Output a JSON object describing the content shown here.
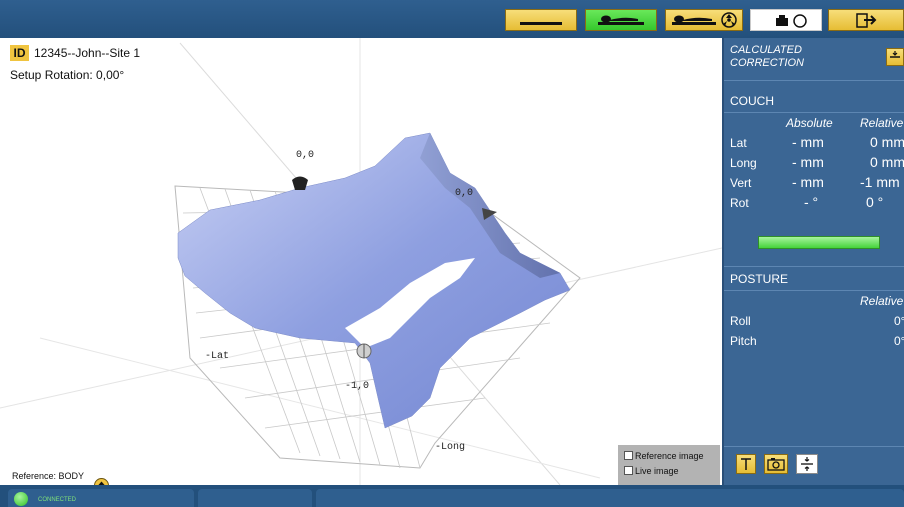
{
  "header": {
    "patient_id_badge": "ID",
    "patient_id": "12345--John--Site 1",
    "setup_rotation": "Setup Rotation: 0,00°"
  },
  "toolbar": {
    "buttons": [
      "couch-flat",
      "patient-setup",
      "patient-radiation",
      "printer-record",
      "exit"
    ],
    "active": "patient-setup"
  },
  "view3d": {
    "labels": {
      "origin_top": "0,0",
      "origin_right": "0,0",
      "neg_lat": "-Lat",
      "neg_one": "-1,0",
      "neg_long": "-Long"
    },
    "overlay": {
      "reference_image": "Reference image",
      "live_image": "Live image"
    }
  },
  "reference": "Reference: BODY",
  "status": {
    "connected": "CONNECTED"
  },
  "panel": {
    "title": "CALCULATED",
    "title2": "CORRECTION",
    "couch_title": "COUCH",
    "col_absolute": "Absolute",
    "col_relative": "Relative",
    "rows": [
      {
        "label": "Lat",
        "absolute": "- mm",
        "relative": "0 mm"
      },
      {
        "label": "Long",
        "absolute": "- mm",
        "relative": "0 mm"
      },
      {
        "label": "Vert",
        "absolute": "- mm",
        "relative": "-1 mm"
      },
      {
        "label": "Rot",
        "absolute": "- °",
        "relative": "0 °"
      }
    ],
    "posture_title": "POSTURE",
    "posture_relative": "Relative",
    "posture_rows": [
      {
        "label": "Roll",
        "relative": "0°"
      },
      {
        "label": "Pitch",
        "relative": "0°"
      }
    ]
  },
  "colors": {
    "panel_bg": "#3b6694",
    "topbar": "#2f5f8f",
    "surface": "#9eaee8",
    "toolbar_yellow": "#e9c33e",
    "toolbar_green": "#46d43a"
  }
}
